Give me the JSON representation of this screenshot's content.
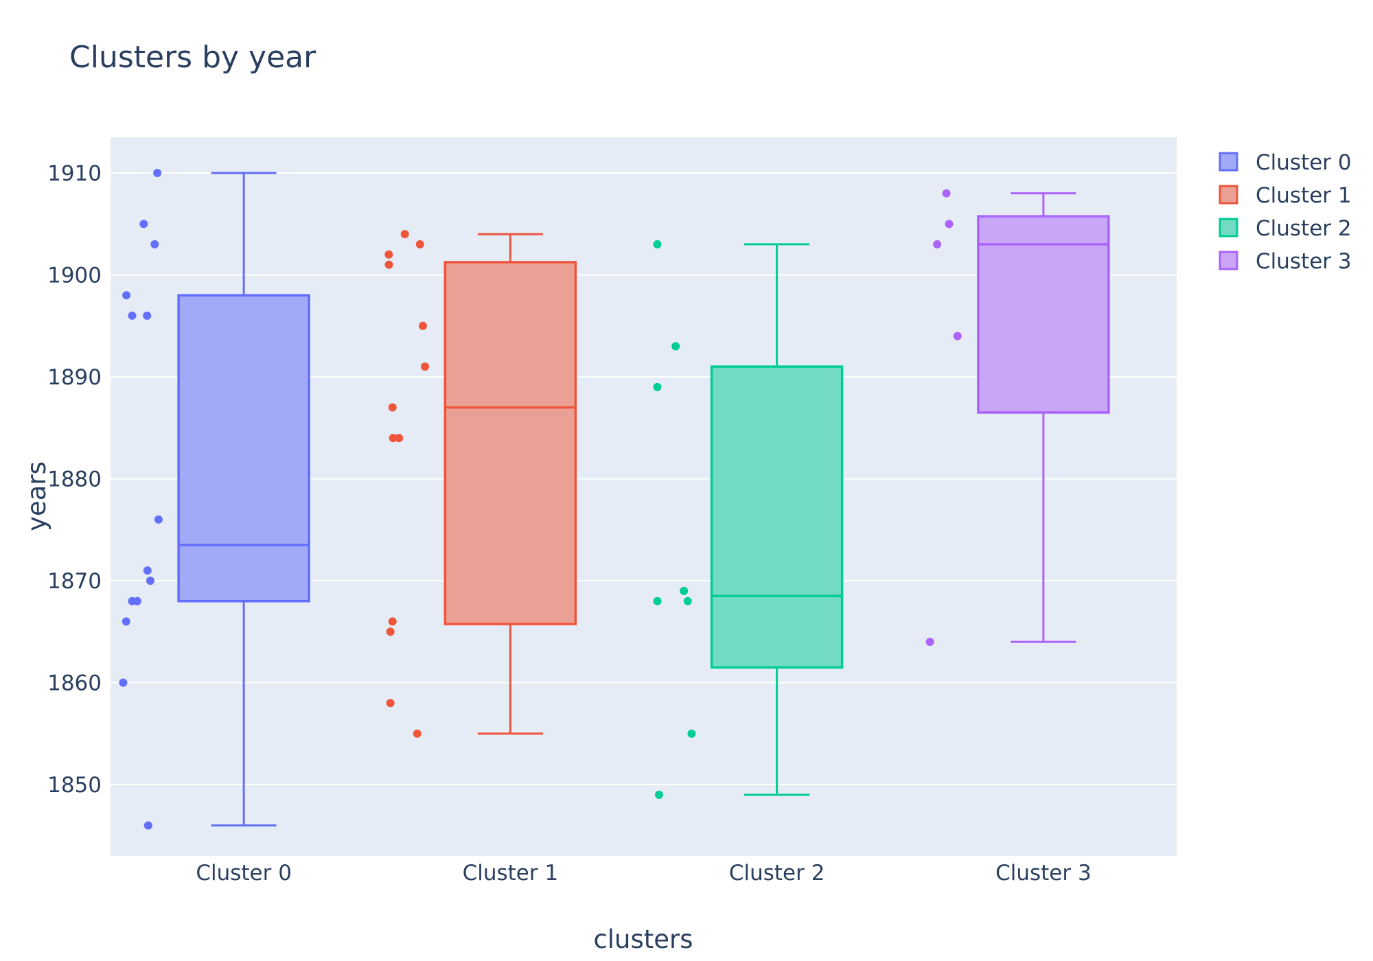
{
  "chart_data": {
    "type": "box",
    "title": "Clusters by year",
    "xlabel": "clusters",
    "ylabel": "years",
    "ylim": [
      1843,
      1913.5
    ],
    "yticks": [
      1850,
      1860,
      1870,
      1880,
      1890,
      1900,
      1910
    ],
    "grid": true,
    "legend_position": "top-right",
    "categories": [
      "Cluster 0",
      "Cluster 1",
      "Cluster 2",
      "Cluster 3"
    ],
    "series": [
      {
        "name": "Cluster 0",
        "color": "#636efa",
        "fill": "#a2a9f7",
        "min": 1846,
        "q1": 1868,
        "median": 1873.5,
        "q3": 1898,
        "max": 1910,
        "points": [
          1910,
          1905,
          1903,
          1898,
          1896,
          1896,
          1876,
          1871,
          1870,
          1868,
          1868,
          1866,
          1860,
          1846
        ]
      },
      {
        "name": "Cluster 1",
        "color": "#ef553b",
        "fill": "#eba096",
        "min": 1855,
        "q1": 1865.75,
        "median": 1887,
        "q3": 1901.25,
        "max": 1904,
        "points": [
          1904,
          1903,
          1902,
          1901,
          1895,
          1891,
          1887,
          1884,
          1884,
          1866,
          1865,
          1858,
          1855
        ]
      },
      {
        "name": "Cluster 2",
        "color": "#00cc96",
        "fill": "#73dbc4",
        "min": 1849,
        "q1": 1861.5,
        "median": 1868.5,
        "q3": 1891,
        "max": 1903,
        "points": [
          1903,
          1893,
          1889,
          1869,
          1868,
          1868,
          1855,
          1849
        ]
      },
      {
        "name": "Cluster 3",
        "color": "#ab63fa",
        "fill": "#c9a6f6",
        "min": 1864,
        "q1": 1886.5,
        "median": 1903,
        "q3": 1905.75,
        "max": 1908,
        "points": [
          1908,
          1905,
          1903,
          1894,
          1864
        ]
      }
    ]
  }
}
